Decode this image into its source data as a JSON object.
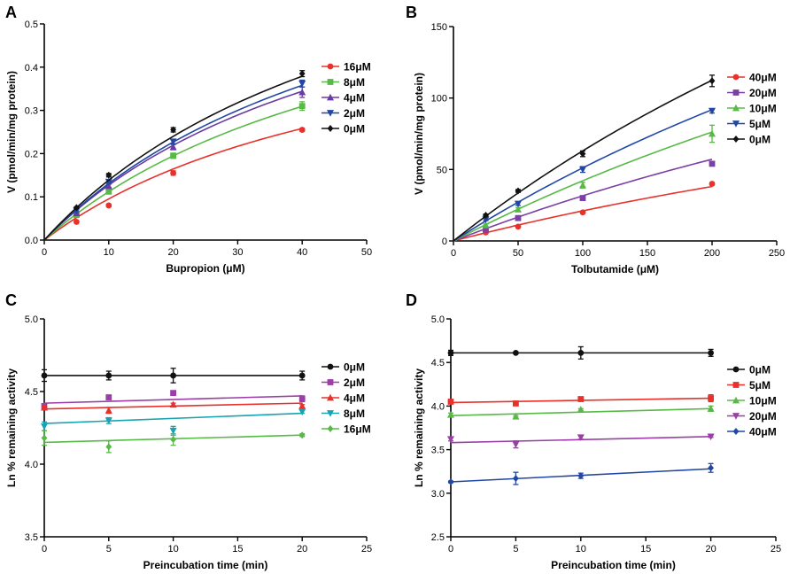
{
  "chart_data": [
    {
      "panel": "A",
      "type": "line",
      "xlabel": "Bupropion (μM)",
      "ylabel": "V (pmol/min/mg protein)",
      "xlim": [
        0,
        50
      ],
      "ylim": [
        0,
        0.5
      ],
      "xticks": [
        0,
        10,
        20,
        30,
        40,
        50
      ],
      "yticks": [
        0.0,
        0.1,
        0.2,
        0.3,
        0.4,
        0.5
      ],
      "ytick_labels": [
        "0.0",
        "0.1",
        "0.2",
        "0.3",
        "0.4",
        "0.5"
      ],
      "legend_position": "right",
      "fit": "michaelis-menten",
      "fit_range": [
        0,
        40
      ],
      "x": [
        5,
        10,
        20,
        40
      ],
      "series": [
        {
          "name": "16μM",
          "color": "#e8312a",
          "marker": "circle",
          "vmax": 0.6,
          "km": 53,
          "values": [
            0.042,
            0.08,
            0.155,
            0.255
          ],
          "err": [
            0.002,
            0.003,
            0.005,
            0.003
          ]
        },
        {
          "name": "8μM",
          "color": "#58b947",
          "marker": "square",
          "vmax": 0.75,
          "km": 57,
          "values": [
            0.058,
            0.112,
            0.195,
            0.31
          ],
          "err": [
            0.002,
            0.004,
            0.006,
            0.01
          ]
        },
        {
          "name": "4μM",
          "color": "#6a3aa3",
          "marker": "triangle-up",
          "vmax": 0.8,
          "km": 53,
          "values": [
            0.062,
            0.125,
            0.215,
            0.342
          ],
          "err": [
            0.002,
            0.004,
            0.006,
            0.012
          ]
        },
        {
          "name": "2μM",
          "color": "#2147a6",
          "marker": "triangle-down",
          "vmax": 0.85,
          "km": 55,
          "values": [
            0.068,
            0.135,
            0.228,
            0.362
          ],
          "err": [
            0.002,
            0.004,
            0.005,
            0.008
          ]
        },
        {
          "name": "0μM",
          "color": "#111111",
          "marker": "diamond",
          "vmax": 0.9,
          "km": 55,
          "values": [
            0.075,
            0.15,
            0.255,
            0.385
          ],
          "err": [
            0.002,
            0.004,
            0.005,
            0.007
          ]
        }
      ]
    },
    {
      "panel": "B",
      "type": "line",
      "xlabel": "Tolbutamide (μM)",
      "ylabel": "V (pmol/min/mg protein)",
      "xlim": [
        0,
        250
      ],
      "ylim": [
        0,
        150
      ],
      "xticks": [
        0,
        50,
        100,
        150,
        200,
        250
      ],
      "yticks": [
        0,
        50,
        100,
        150
      ],
      "ytick_labels": [
        "0",
        "50",
        "100",
        "150"
      ],
      "legend_position": "right",
      "fit": "michaelis-menten",
      "fit_range": [
        0,
        200
      ],
      "x": [
        25,
        50,
        100,
        200
      ],
      "series": [
        {
          "name": "40μM",
          "color": "#e8312a",
          "marker": "circle",
          "vmax": 200,
          "km": 850,
          "values": [
            6,
            10,
            20,
            40
          ],
          "err": [
            0.5,
            0.5,
            0.8,
            0.8
          ]
        },
        {
          "name": "20μM",
          "color": "#7b3fa6",
          "marker": "square",
          "vmax": 300,
          "km": 850,
          "values": [
            8,
            16,
            30,
            54
          ],
          "err": [
            0.5,
            0.8,
            1.0,
            1.5
          ]
        },
        {
          "name": "10μM",
          "color": "#58b947",
          "marker": "triangle-up",
          "vmax": 400,
          "km": 850,
          "values": [
            11,
            22,
            39,
            75
          ],
          "err": [
            0.8,
            1.2,
            2.0,
            6.0
          ]
        },
        {
          "name": "5μM",
          "color": "#2147a6",
          "marker": "triangle-down",
          "vmax": 450,
          "km": 780,
          "values": [
            15,
            26,
            50,
            91
          ],
          "err": [
            0.8,
            1.2,
            2.0,
            1.5
          ]
        },
        {
          "name": "0μM",
          "color": "#111111",
          "marker": "diamond",
          "vmax": 520,
          "km": 725,
          "values": [
            18,
            35,
            61,
            112
          ],
          "err": [
            0.8,
            1.0,
            2.0,
            4.0
          ]
        }
      ]
    },
    {
      "panel": "C",
      "type": "line",
      "xlabel": "Preincubation time (min)",
      "ylabel": "Ln % remaining activity",
      "xlim": [
        0,
        25
      ],
      "ylim": [
        3.5,
        5.0
      ],
      "xticks": [
        0,
        5,
        10,
        15,
        20,
        25
      ],
      "yticks": [
        3.5,
        4.0,
        4.5,
        5.0
      ],
      "ytick_labels": [
        "3.5",
        "4.0",
        "4.5",
        "5.0"
      ],
      "legend_position": "right",
      "fit": "linear",
      "fit_range": [
        0,
        20
      ],
      "x": [
        0,
        5,
        10,
        20
      ],
      "series": [
        {
          "name": "0μM",
          "color": "#111111",
          "marker": "circle",
          "line": [
            4.61,
            4.61
          ],
          "values": [
            4.61,
            4.61,
            4.61,
            4.61
          ],
          "err": [
            0.04,
            0.03,
            0.05,
            0.03
          ]
        },
        {
          "name": "2μM",
          "color": "#9b3ea7",
          "marker": "square",
          "line": [
            4.42,
            4.47
          ],
          "values": [
            4.4,
            4.46,
            4.49,
            4.45
          ],
          "err": [
            0.01,
            0.01,
            0.01,
            0.02
          ]
        },
        {
          "name": "4μM",
          "color": "#e8312a",
          "marker": "triangle-up",
          "line": [
            4.38,
            4.42
          ],
          "values": [
            4.39,
            4.37,
            4.41,
            4.4
          ],
          "err": [
            0.01,
            0.02,
            0.01,
            0.01
          ]
        },
        {
          "name": "8μM",
          "color": "#17a3b1",
          "marker": "triangle-down",
          "line": [
            4.28,
            4.35
          ],
          "values": [
            4.26,
            4.3,
            4.23,
            4.36
          ],
          "err": [
            0.03,
            0.02,
            0.03,
            0.01
          ]
        },
        {
          "name": "16μM",
          "color": "#58b947",
          "marker": "diamond",
          "line": [
            4.15,
            4.2
          ],
          "values": [
            4.18,
            4.12,
            4.17,
            4.2
          ],
          "err": [
            0.05,
            0.04,
            0.04,
            0.01
          ]
        }
      ]
    },
    {
      "panel": "D",
      "type": "line",
      "xlabel": "Preincubation time (min)",
      "ylabel": "Ln % remaining activity",
      "xlim": [
        0,
        25
      ],
      "ylim": [
        2.5,
        5.0
      ],
      "xticks": [
        0,
        5,
        10,
        15,
        20,
        25
      ],
      "yticks": [
        2.5,
        3.0,
        3.5,
        4.0,
        4.5,
        5.0
      ],
      "ytick_labels": [
        "2.5",
        "3.0",
        "3.5",
        "4.0",
        "4.5",
        "5.0"
      ],
      "legend_position": "right",
      "fit": "linear",
      "fit_range": [
        0,
        20
      ],
      "x": [
        0,
        5,
        10,
        20
      ],
      "series": [
        {
          "name": "0μM",
          "color": "#111111",
          "marker": "circle",
          "line": [
            4.61,
            4.61
          ],
          "values": [
            4.61,
            4.61,
            4.61,
            4.61
          ],
          "err": [
            0.03,
            0.01,
            0.07,
            0.04
          ]
        },
        {
          "name": "5μM",
          "color": "#e8312a",
          "marker": "square",
          "line": [
            4.04,
            4.09
          ],
          "values": [
            4.05,
            4.03,
            4.08,
            4.09
          ],
          "err": [
            0.01,
            0.02,
            0.02,
            0.04
          ]
        },
        {
          "name": "10μM",
          "color": "#58b947",
          "marker": "triangle-up",
          "line": [
            3.89,
            3.97
          ],
          "values": [
            3.9,
            3.88,
            3.96,
            3.97
          ],
          "err": [
            0.02,
            0.01,
            0.01,
            0.03
          ]
        },
        {
          "name": "20μM",
          "color": "#9b3ea7",
          "marker": "triangle-down",
          "line": [
            3.58,
            3.65
          ],
          "values": [
            3.62,
            3.56,
            3.64,
            3.65
          ],
          "err": [
            0.02,
            0.04,
            0.02,
            0.01
          ]
        },
        {
          "name": "40μM",
          "color": "#2147a6",
          "marker": "diamond",
          "line": [
            3.13,
            3.28
          ],
          "values": [
            3.13,
            3.17,
            3.2,
            3.29
          ],
          "err": [
            0.01,
            0.07,
            0.03,
            0.05
          ]
        }
      ]
    }
  ]
}
